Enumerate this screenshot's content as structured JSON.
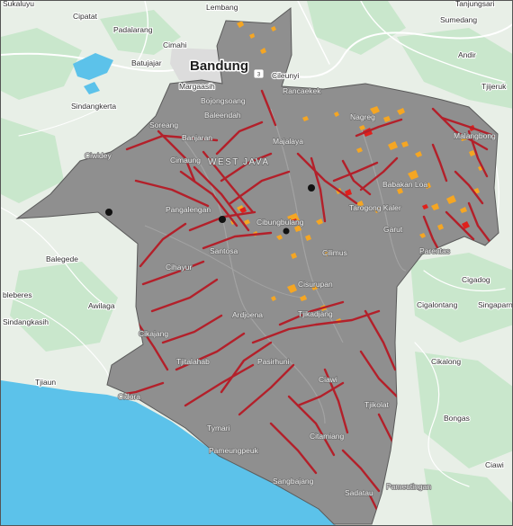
{
  "map": {
    "region_label": "WEST JAVA",
    "city_label": "Bandung",
    "road_shield": "3",
    "labels_outside": [
      "Cipatat",
      "Padalarang",
      "Cimahi",
      "Batujajar",
      "Sindangkerta",
      "Lembang",
      "Sumedang",
      "Tanjungsari",
      "Andir",
      "Cileunyi",
      "Balegede",
      "Awilaga",
      "Sindangkasih",
      "Tjiaun",
      "Bongas",
      "Cigadog",
      "Cigalontang",
      "Singaparna",
      "Cikalong",
      "Ciawi",
      "Margaasih",
      "Sukaluyu",
      "Tjijeruk",
      "bleberes"
    ],
    "labels_inside": [
      "Bojongsoang",
      "Baleendah",
      "Rancaekek",
      "Soreang",
      "Banjaran",
      "Majalaya",
      "Nagreg",
      "Malangbong",
      "Ciwidey",
      "Cimaung",
      "Pangalengan",
      "Cibungbulang",
      "Babakan Loa",
      "Tarogong Kaler",
      "Garut",
      "Parentas",
      "Santosa",
      "Cilimus",
      "Cisurupan",
      "Tjikadjang",
      "Ardjoena",
      "Tjitalahab",
      "Pasirhuni",
      "Ciawi",
      "Tjikolat",
      "Citamiang",
      "Pameungpeuk",
      "Sangbajang",
      "Sadatau",
      "Pameutingan",
      "Tymari",
      "Cidora",
      "Cikajang",
      "Cihayur"
    ],
    "colors": {
      "land": "#e8efe7",
      "green_area": "#c9e7cc",
      "water": "#5cc2ea",
      "study_area": "#8f8f8f",
      "study_area_outline": "#5a5a5a",
      "fault_lines": "#b3202a",
      "hotspots": "#f5a623",
      "hotspot_high": "#e0201c",
      "station_markers": "#111111"
    },
    "icons": {
      "station_marker": "black-dot-icon",
      "road_shield": "road-shield-icon"
    }
  }
}
